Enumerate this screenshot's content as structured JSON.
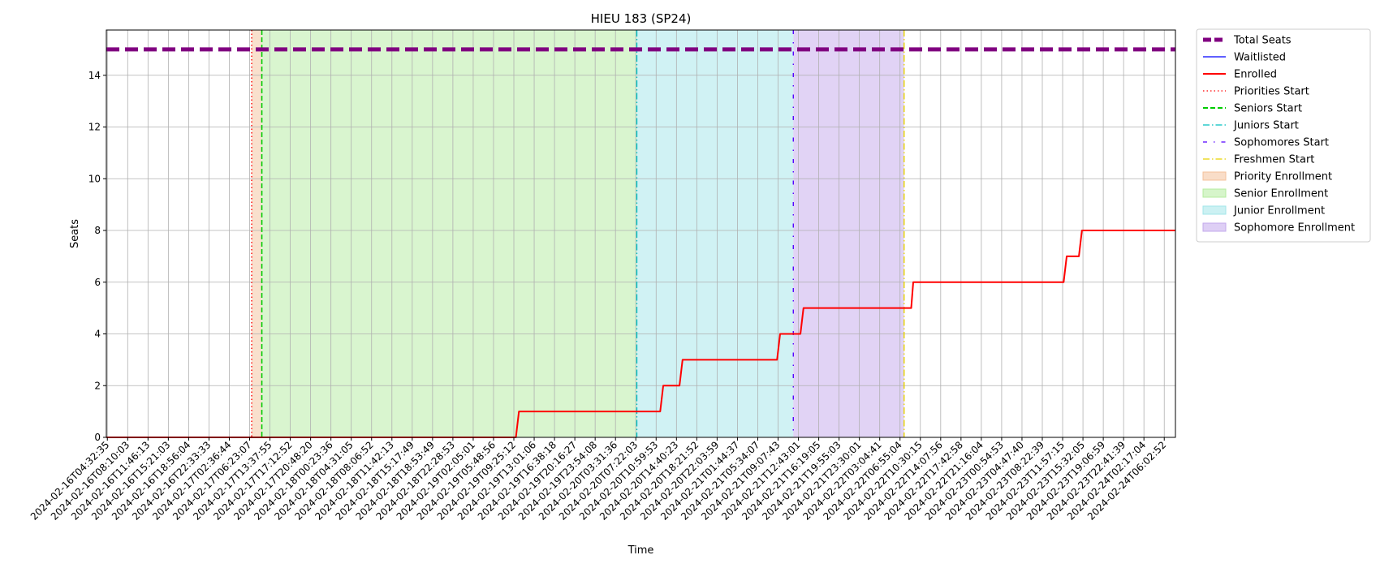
{
  "chart_data": {
    "type": "line",
    "title": "HIEU 183 (SP24)",
    "xlabel": "Time",
    "ylabel": "Seats",
    "ylim": [
      0,
      15.75
    ],
    "y_ticks": [
      0,
      2,
      4,
      6,
      8,
      10,
      12,
      14
    ],
    "grid": true,
    "legend_position": "outside-right",
    "x_ticks": [
      "2024-02-16T04:32:35",
      "2024-02-16T08:10:03",
      "2024-02-16T11:46:13",
      "2024-02-16T15:21:03",
      "2024-02-16T18:56:04",
      "2024-02-16T22:33:33",
      "2024-02-17T02:36:44",
      "2024-02-17T06:23:07",
      "2024-02-17T13:37:55",
      "2024-02-17T17:12:52",
      "2024-02-17T20:48:20",
      "2024-02-18T00:23:36",
      "2024-02-18T04:31:05",
      "2024-02-18T08:06:52",
      "2024-02-18T11:42:13",
      "2024-02-18T15:17:49",
      "2024-02-18T18:53:49",
      "2024-02-18T22:28:53",
      "2024-02-19T02:05:01",
      "2024-02-19T05:48:56",
      "2024-02-19T09:25:12",
      "2024-02-19T13:01:06",
      "2024-02-19T16:38:18",
      "2024-02-19T20:16:27",
      "2024-02-19T23:54:08",
      "2024-02-20T03:31:36",
      "2024-02-20T07:22:03",
      "2024-02-20T10:59:53",
      "2024-02-20T14:40:23",
      "2024-02-20T18:21:52",
      "2024-02-20T22:03:59",
      "2024-02-21T01:44:37",
      "2024-02-21T05:34:07",
      "2024-02-21T09:07:43",
      "2024-02-21T12:43:01",
      "2024-02-21T16:19:05",
      "2024-02-21T19:55:03",
      "2024-02-21T23:30:01",
      "2024-02-22T03:04:41",
      "2024-02-22T06:55:04",
      "2024-02-22T10:30:15",
      "2024-02-22T14:07:56",
      "2024-02-22T17:42:58",
      "2024-02-22T21:16:04",
      "2024-02-23T00:54:53",
      "2024-02-23T04:47:40",
      "2024-02-23T08:22:39",
      "2024-02-23T11:57:15",
      "2024-02-23T15:32:05",
      "2024-02-23T19:06:59",
      "2024-02-23T22:41:39",
      "2024-02-24T02:17:04",
      "2024-02-24T06:02:52"
    ],
    "x_range_ticks": [
      -0.05,
      52.55
    ],
    "series": [
      {
        "name": "Total Seats",
        "color": "#800080",
        "style": "dashed-thick",
        "x_ticks_pos": [
          -0.05,
          52.55
        ],
        "values": [
          15,
          15
        ]
      },
      {
        "name": "Waitlisted",
        "color": "#0000ff",
        "style": "solid-thin",
        "x_ticks_pos": [],
        "values": []
      },
      {
        "name": "Enrolled",
        "color": "#ff0000",
        "style": "solid-thick",
        "x_ticks_pos": [
          -0.05,
          20.1,
          20.25,
          27.2,
          27.35,
          28.15,
          28.3,
          32.95,
          33.1,
          34.1,
          34.25,
          39.55,
          39.65,
          47.05,
          47.2,
          47.8,
          47.95,
          52.55
        ],
        "values": [
          0,
          0,
          1,
          1,
          2,
          2,
          3,
          3,
          4,
          4,
          5,
          5,
          6,
          6,
          7,
          7,
          8,
          8
        ]
      }
    ],
    "markers": [
      {
        "name": "Priorities Start",
        "x_ticks_pos": 7.1,
        "color": "#ff0000",
        "style": "dotted"
      },
      {
        "name": "Seniors Start",
        "x_ticks_pos": 7.6,
        "color": "#00cc00",
        "style": "dashed"
      },
      {
        "name": "Juniors Start",
        "x_ticks_pos": 26.05,
        "color": "#00bfbf",
        "style": "dashdot"
      },
      {
        "name": "Sophomores Start",
        "x_ticks_pos": 33.75,
        "color": "#5500ff",
        "style": "loosedashdot"
      },
      {
        "name": "Freshmen Start",
        "x_ticks_pos": 39.2,
        "color": "#e6d200",
        "style": "dashdot"
      }
    ],
    "regions": [
      {
        "name": "Priority Enrollment",
        "from": 7.1,
        "to": 7.6,
        "color": "#f4c19b"
      },
      {
        "name": "Senior Enrollment",
        "from": 7.6,
        "to": 26.05,
        "color": "#b4ec9f"
      },
      {
        "name": "Junior Enrollment",
        "from": 26.05,
        "to": 33.75,
        "color": "#a2e6ea"
      },
      {
        "name": "Sophomore Enrollment",
        "from": 33.75,
        "to": 39.2,
        "color": "#c3a8ec"
      }
    ]
  },
  "legend": [
    {
      "label": "Total Seats",
      "kind": "line",
      "color": "#800080",
      "style": "dashed-thick"
    },
    {
      "label": "Waitlisted",
      "kind": "line",
      "color": "#0000ff",
      "style": "solid-thin"
    },
    {
      "label": "Enrolled",
      "kind": "line",
      "color": "#ff0000",
      "style": "solid-thick"
    },
    {
      "label": "Priorities Start",
      "kind": "line",
      "color": "#ff0000",
      "style": "dotted"
    },
    {
      "label": "Seniors Start",
      "kind": "line",
      "color": "#00cc00",
      "style": "dashed"
    },
    {
      "label": "Juniors Start",
      "kind": "line",
      "color": "#00bfbf",
      "style": "dashdot"
    },
    {
      "label": "Sophomores Start",
      "kind": "line",
      "color": "#5500ff",
      "style": "loosedashdot"
    },
    {
      "label": "Freshmen Start",
      "kind": "line",
      "color": "#e6d200",
      "style": "dashdot"
    },
    {
      "label": "Priority Enrollment",
      "kind": "patch",
      "color": "#f4c19b"
    },
    {
      "label": "Senior Enrollment",
      "kind": "patch",
      "color": "#b4ec9f"
    },
    {
      "label": "Junior Enrollment",
      "kind": "patch",
      "color": "#a2e6ea"
    },
    {
      "label": "Sophomore Enrollment",
      "kind": "patch",
      "color": "#c3a8ec"
    }
  ]
}
